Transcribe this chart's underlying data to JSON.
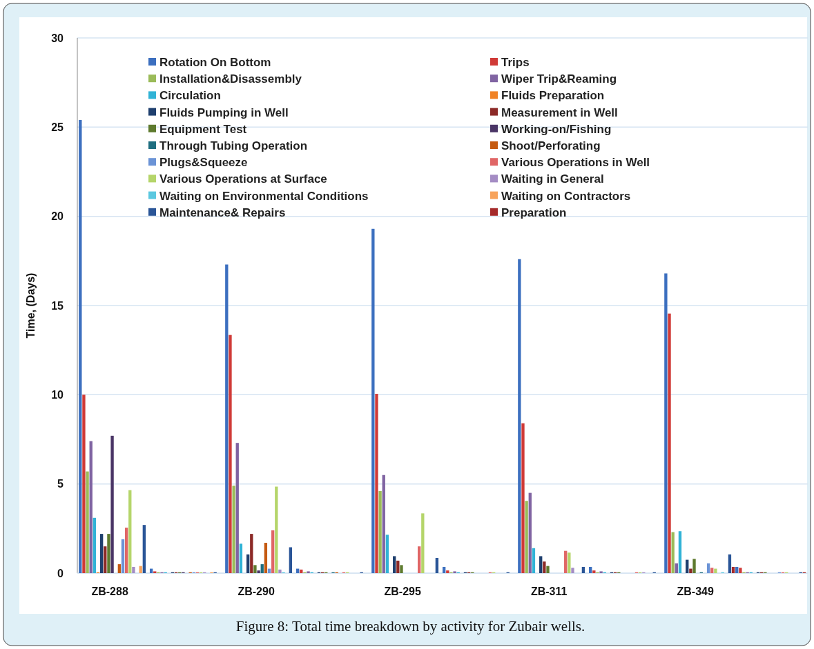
{
  "chart_data": {
    "type": "bar",
    "ylabel": "Time, (Days)",
    "categories": [
      "ZB-288",
      "ZB-290",
      "ZB-295",
      "ZB-311",
      "ZB-349"
    ],
    "ylim": [
      0,
      30
    ],
    "yticks": [
      0,
      5,
      10,
      15,
      20,
      25,
      30
    ],
    "grid": "y",
    "legend": "top",
    "annotations": [
      "Figure 8: Total time breakdown by activity for Zubair wells."
    ],
    "series": [
      {
        "name": "Rotation On Bottom",
        "color": "#3c6fbf",
        "values": [
          25.4,
          17.3,
          19.3,
          17.6,
          16.8
        ]
      },
      {
        "name": "Trips",
        "color": "#d03a37",
        "values": [
          10.0,
          13.35,
          10.05,
          8.4,
          14.55
        ]
      },
      {
        "name": "Installation&Disassembly",
        "color": "#9bbb59",
        "values": [
          5.7,
          4.9,
          4.6,
          4.05,
          2.3
        ]
      },
      {
        "name": "Wiper Trip&Reaming",
        "color": "#8064a2",
        "values": [
          7.4,
          7.3,
          5.5,
          4.5,
          0.55
        ]
      },
      {
        "name": "Circulation",
        "color": "#31b3d6",
        "values": [
          3.1,
          1.65,
          2.15,
          1.4,
          2.35
        ]
      },
      {
        "name": "Fluids Preparation",
        "color": "#f08226",
        "values": [
          0.05,
          0,
          0,
          0,
          0
        ]
      },
      {
        "name": "Fluids Pumping in Well",
        "color": "#1f3f6e",
        "values": [
          2.2,
          1.05,
          0.95,
          0.95,
          0.75
        ]
      },
      {
        "name": "Measurement in Well",
        "color": "#8c2a27",
        "values": [
          1.5,
          2.2,
          0.7,
          0.65,
          0.25
        ]
      },
      {
        "name": "Equipment Test",
        "color": "#5e7a2e",
        "values": [
          2.2,
          0.45,
          0.45,
          0.4,
          0.8
        ]
      },
      {
        "name": "Working-on/Fishing",
        "color": "#4a3566",
        "values": [
          7.7,
          0.15,
          0,
          0,
          0
        ]
      },
      {
        "name": "Through Tubing Operation",
        "color": "#1f6e80",
        "values": [
          0,
          0.5,
          0,
          0,
          0.05
        ]
      },
      {
        "name": "Shoot/Perforating",
        "color": "#c55a11",
        "values": [
          0.5,
          1.7,
          0,
          0,
          0
        ]
      },
      {
        "name": "Plugs&Squeeze",
        "color": "#6b93d6",
        "values": [
          1.9,
          0.25,
          0,
          0,
          0.55
        ]
      },
      {
        "name": "Various Operations in Well",
        "color": "#e06666",
        "values": [
          2.55,
          2.4,
          1.5,
          1.25,
          0.3
        ]
      },
      {
        "name": "Various Operations at Surface",
        "color": "#b5d56a",
        "values": [
          4.65,
          4.85,
          3.35,
          1.15,
          0.25
        ]
      },
      {
        "name": "Waiting in General",
        "color": "#a48cc4",
        "values": [
          0.35,
          0.2,
          0,
          0.3,
          0
        ]
      },
      {
        "name": "Waiting on Environmental Conditions",
        "color": "#5bc8e0",
        "values": [
          0,
          0.05,
          0,
          0,
          0.05
        ]
      },
      {
        "name": "Waiting on Contractors",
        "color": "#f7a35c",
        "values": [
          0.4,
          0,
          0,
          0,
          0
        ]
      },
      {
        "name": "Maintenance& Repairs",
        "color": "#2a5597",
        "values": [
          2.7,
          1.45,
          0.85,
          0.35,
          1.05
        ]
      },
      {
        "name": "Preparation",
        "color": "#a52a2a",
        "values": [
          0,
          0,
          0,
          0,
          0.35
        ]
      },
      {
        "color": "#3c6fbf",
        "values": [
          0.25,
          0.25,
          0.35,
          0.35,
          0.35
        ]
      },
      {
        "color": "#d03a37",
        "values": [
          0.1,
          0.2,
          0.15,
          0.15,
          0.3
        ]
      },
      {
        "color": "#9bbb59",
        "values": [
          0.05,
          0.05,
          0.05,
          0.05,
          0.05
        ]
      },
      {
        "color": "#8064a2",
        "values": [
          0.05,
          0.1,
          0.1,
          0.1,
          0.05
        ]
      },
      {
        "color": "#31b3d6",
        "values": [
          0.05,
          0.05,
          0.05,
          0.05,
          0.05
        ]
      },
      {
        "color": "#f08226",
        "values": [
          0,
          0,
          0,
          0,
          0
        ]
      },
      {
        "color": "#1f3f6e",
        "values": [
          0.05,
          0.05,
          0.05,
          0.05,
          0.05
        ]
      },
      {
        "color": "#8c2a27",
        "values": [
          0.05,
          0.05,
          0.05,
          0.05,
          0.05
        ]
      },
      {
        "color": "#5e7a2e",
        "values": [
          0.05,
          0.05,
          0.05,
          0.05,
          0.05
        ]
      },
      {
        "color": "#4a3566",
        "values": [
          0.05,
          0,
          0,
          0,
          0
        ]
      },
      {
        "color": "#1f6e80",
        "values": [
          0,
          0.05,
          0,
          0,
          0
        ]
      },
      {
        "color": "#c55a11",
        "values": [
          0.05,
          0.05,
          0,
          0,
          0
        ]
      },
      {
        "color": "#6b93d6",
        "values": [
          0.05,
          0,
          0,
          0,
          0.05
        ]
      },
      {
        "color": "#e06666",
        "values": [
          0.05,
          0.05,
          0.05,
          0.05,
          0.05
        ]
      },
      {
        "color": "#b5d56a",
        "values": [
          0.05,
          0.05,
          0.05,
          0.05,
          0.05
        ]
      },
      {
        "color": "#a48cc4",
        "values": [
          0.05,
          0,
          0,
          0.05,
          0
        ]
      },
      {
        "color": "#5bc8e0",
        "values": [
          0,
          0,
          0,
          0,
          0
        ]
      },
      {
        "color": "#f7a35c",
        "values": [
          0.05,
          0,
          0,
          0,
          0
        ]
      },
      {
        "color": "#2a5597",
        "values": [
          0.05,
          0.05,
          0.05,
          0.05,
          0.05
        ]
      },
      {
        "color": "#a52a2a",
        "values": [
          0,
          0,
          0,
          0,
          0.05
        ]
      }
    ]
  }
}
